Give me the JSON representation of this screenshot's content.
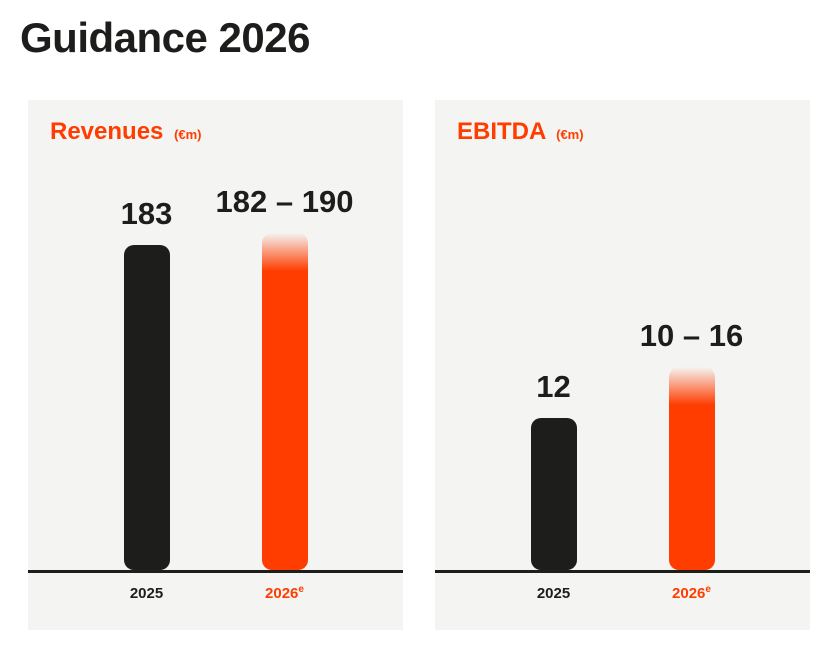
{
  "page": {
    "title": "Guidance 2026"
  },
  "colors": {
    "accent_orange": "#ff3d00",
    "bar_black": "#1d1d1b",
    "panel_bg": "#f4f4f2",
    "page_bg": "#ffffff"
  },
  "chart_data": [
    {
      "type": "bar",
      "title": "Revenues",
      "unit": "(€m)",
      "xlabel": "",
      "ylabel": "",
      "ylim": [
        0,
        200
      ],
      "grid": false,
      "legend": "none",
      "categories": [
        {
          "text": "2025",
          "sup": ""
        },
        {
          "text": "2026",
          "sup": "e"
        }
      ],
      "bars": [
        {
          "label": "183",
          "value": 183,
          "color": "#1d1d1b",
          "fade_top": false
        },
        {
          "label": "182 – 190",
          "value_low": 182,
          "value_high": 190,
          "color": "#ff3d00",
          "fade_top": true
        }
      ]
    },
    {
      "type": "bar",
      "title": "EBITDA",
      "unit": "(€m)",
      "xlabel": "",
      "ylabel": "",
      "ylim": [
        0,
        28
      ],
      "grid": false,
      "legend": "none",
      "categories": [
        {
          "text": "2025",
          "sup": ""
        },
        {
          "text": "2026",
          "sup": "e"
        }
      ],
      "bars": [
        {
          "label": "12",
          "value": 12,
          "color": "#1d1d1b",
          "fade_top": false
        },
        {
          "label": "10 – 16",
          "value_low": 10,
          "value_high": 16,
          "color": "#ff3d00",
          "fade_top": true
        }
      ]
    }
  ]
}
